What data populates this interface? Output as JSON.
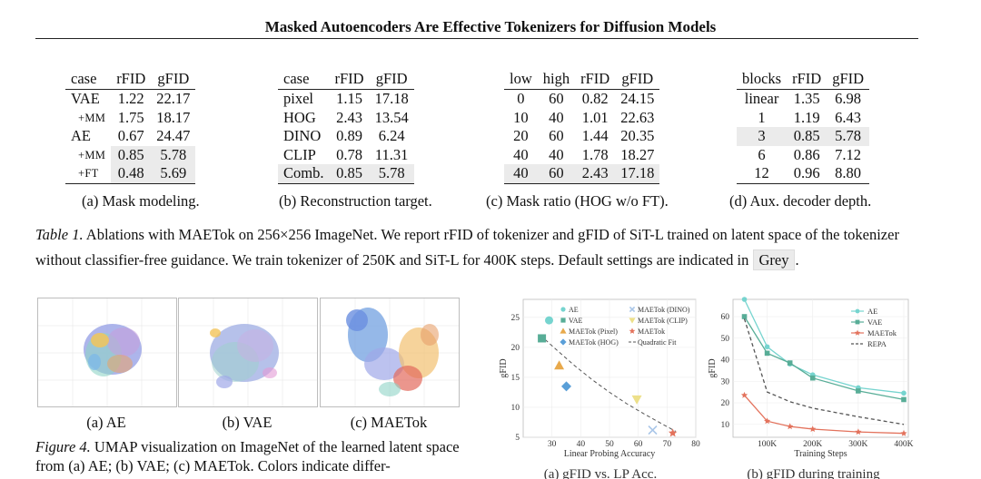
{
  "header": {
    "title": "Masked Autoencoders Are Effective Tokenizers for Diffusion Models"
  },
  "table_a": {
    "columns": [
      "case",
      "rFID",
      "gFID"
    ],
    "rows": [
      {
        "case": "VAE",
        "rfid": "1.22",
        "gfid": "22.17",
        "indent": false,
        "grey": false
      },
      {
        "case": "+MM",
        "rfid": "1.75",
        "gfid": "18.17",
        "indent": true,
        "grey": false
      },
      {
        "case": "AE",
        "rfid": "0.67",
        "gfid": "24.47",
        "indent": false,
        "grey": false
      },
      {
        "case": "+MM",
        "rfid": "0.85",
        "gfid": "5.78",
        "indent": true,
        "grey": true
      },
      {
        "case": "+FT",
        "rfid": "0.48",
        "gfid": "5.69",
        "indent": true,
        "grey": true
      }
    ],
    "caption": "(a)  Mask modeling."
  },
  "table_b": {
    "columns": [
      "case",
      "rFID",
      "gFID"
    ],
    "rows": [
      {
        "case": "pixel",
        "rfid": "1.15",
        "gfid": "17.18",
        "grey": false
      },
      {
        "case": "HOG",
        "rfid": "2.43",
        "gfid": "13.54",
        "grey": false
      },
      {
        "case": "DINO",
        "rfid": "0.89",
        "gfid": "6.24",
        "grey": false
      },
      {
        "case": "CLIP",
        "rfid": "0.78",
        "gfid": "11.31",
        "grey": false
      },
      {
        "case": "Comb.",
        "rfid": "0.85",
        "gfid": "5.78",
        "grey": true
      }
    ],
    "caption": "(b)  Reconstruction target."
  },
  "table_c": {
    "columns": [
      "low",
      "high",
      "rFID",
      "gFID"
    ],
    "rows": [
      {
        "low": "0",
        "high": "60",
        "rfid": "0.82",
        "gfid": "24.15",
        "grey": false
      },
      {
        "low": "10",
        "high": "40",
        "rfid": "1.01",
        "gfid": "22.63",
        "grey": false
      },
      {
        "low": "20",
        "high": "60",
        "rfid": "1.44",
        "gfid": "20.35",
        "grey": false
      },
      {
        "low": "40",
        "high": "40",
        "rfid": "1.78",
        "gfid": "18.27",
        "grey": false
      },
      {
        "low": "40",
        "high": "60",
        "rfid": "2.43",
        "gfid": "17.18",
        "grey": true
      }
    ],
    "caption": "(c)  Mask ratio (HOG w/o FT)."
  },
  "table_d": {
    "columns": [
      "blocks",
      "rFID",
      "gFID"
    ],
    "rows": [
      {
        "blocks": "linear",
        "rfid": "1.35",
        "gfid": "6.98",
        "grey": false
      },
      {
        "blocks": "1",
        "rfid": "1.19",
        "gfid": "6.43",
        "grey": false
      },
      {
        "blocks": "3",
        "rfid": "0.85",
        "gfid": "5.78",
        "grey": true
      },
      {
        "blocks": "6",
        "rfid": "0.86",
        "gfid": "7.12",
        "grey": false
      },
      {
        "blocks": "12",
        "rfid": "0.96",
        "gfid": "8.80",
        "grey": false
      }
    ],
    "caption": "(d)  Aux. decoder depth."
  },
  "table1_caption": {
    "label": "Table 1.",
    "text1": " Ablations with MAETok on 256×256 ImageNet. We report rFID of tokenizer and gFID of SiT-L trained on latent space of the tokenizer without classifier-free guidance. We train tokenizer of 250K and SiT-L for 400K steps. Default settings are indicated in ",
    "grey_word": "Grey",
    "text2": "."
  },
  "figure4": {
    "panels": [
      {
        "label": "(a)  AE"
      },
      {
        "label": "(b) VAE"
      },
      {
        "label": "(c) MAETok"
      }
    ],
    "caption_label": "Figure 4.",
    "caption_text": " UMAP visualization on ImageNet of the learned latent space from (a) AE; (b) VAE; (c) MAETok. Colors indicate differ-"
  },
  "colors": {
    "ae": "#76d4cf",
    "vae": "#58ad97",
    "maetok": "#e3725c",
    "pixel": "#e8a94b",
    "hog": "#5a9fd8",
    "dino": "#a9c6e8",
    "clip": "#ede08a",
    "quad": "#555555"
  },
  "chart_data": [
    {
      "type": "scatter",
      "caption": "(a) gFID vs. LP Acc.",
      "xlabel": "Linear Probing Accuracy",
      "ylabel": "gFID",
      "xlim": [
        20,
        80
      ],
      "ylim": [
        5,
        28
      ],
      "xticks": [
        "30",
        "40",
        "50",
        "60",
        "70",
        "80"
      ],
      "yticks": [
        "5",
        "10",
        "15",
        "20",
        "25"
      ],
      "legend_position": "top",
      "series": [
        {
          "name": "AE",
          "marker": "circle",
          "color": "#76d4cf",
          "x": 29,
          "y": 24.5
        },
        {
          "name": "VAE",
          "marker": "square",
          "color": "#58ad97",
          "x": 26.5,
          "y": 21.5
        },
        {
          "name": "MAETok (Pixel)",
          "marker": "triangle",
          "color": "#e8a94b",
          "x": 32.5,
          "y": 17
        },
        {
          "name": "MAETok (HOG)",
          "marker": "diamond",
          "color": "#5a9fd8",
          "x": 35,
          "y": 13.5
        },
        {
          "name": "MAETok (DINO)",
          "marker": "x",
          "color": "#a9c6e8",
          "x": 65,
          "y": 6.2
        },
        {
          "name": "MAETok (CLIP)",
          "marker": "triangle-down",
          "color": "#ede08a",
          "x": 59.5,
          "y": 11.3
        },
        {
          "name": "MAETok",
          "marker": "star",
          "color": "#e3725c",
          "x": 72,
          "y": 5.7
        }
      ],
      "fit": {
        "name": "Quadratic Fit",
        "x": [
          26,
          32,
          38,
          44,
          50,
          56,
          62,
          68,
          73
        ],
        "y": [
          22,
          19.4,
          16.9,
          14.6,
          12.5,
          10.6,
          8.9,
          7.3,
          6.0
        ]
      }
    },
    {
      "type": "line",
      "caption": "(b) gFID during training",
      "xlabel": "Training Steps",
      "ylabel": "gFID",
      "xlim": [
        25,
        410
      ],
      "ylim": [
        4,
        68
      ],
      "xticks": [
        "100K",
        "200K",
        "300K",
        "400K"
      ],
      "xtick_values": [
        100,
        200,
        300,
        400
      ],
      "yticks": [
        "10",
        "20",
        "30",
        "40",
        "50",
        "60"
      ],
      "legend_position": "top-right",
      "x": [
        50,
        100,
        150,
        200,
        300,
        400
      ],
      "series": [
        {
          "name": "AE",
          "color": "#76d4cf",
          "marker": "circle",
          "values": [
            68,
            46,
            38,
            33,
            27,
            24.5
          ]
        },
        {
          "name": "VAE",
          "color": "#58ad97",
          "marker": "square",
          "values": [
            60,
            43,
            38.5,
            31.5,
            25.5,
            21.5
          ]
        },
        {
          "name": "MAETok",
          "color": "#e3725c",
          "marker": "star",
          "values": [
            23.5,
            11.5,
            9,
            7.8,
            6.5,
            5.8
          ]
        },
        {
          "name": "REPA",
          "color": "#555555",
          "marker": "none",
          "dashed": true,
          "values": [
            59,
            25,
            20.5,
            17.5,
            13.5,
            10
          ]
        }
      ]
    }
  ]
}
